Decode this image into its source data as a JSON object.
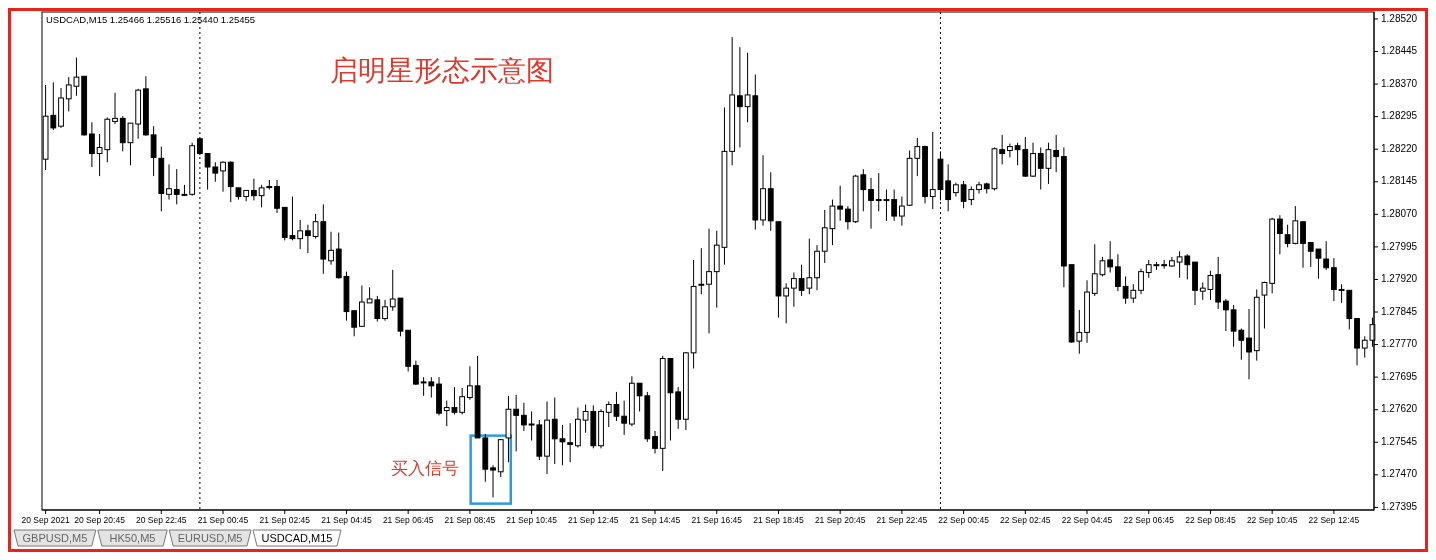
{
  "chart_data": {
    "type": "candlestick",
    "title": "启明星形态示意图",
    "annotations": [
      {
        "text": "买入信号",
        "x": "2021-09-21T09:30",
        "y": 1.27482
      },
      "USDCAD,M15  1.25466 1.25516 1.25440 1.25455",
      "GBPUSD,M5",
      "HK50,M5",
      "EURUSD,M5",
      "USDCAD,M15"
    ],
    "x": [
      "2021-09-20T19:00",
      "2021-09-20T19:15",
      "2021-09-20T19:30",
      "2021-09-20T19:45",
      "2021-09-20T20:00",
      "2021-09-20T20:15",
      "2021-09-20T20:30",
      "2021-09-20T20:45",
      "2021-09-20T21:00",
      "2021-09-20T21:15",
      "2021-09-20T21:30",
      "2021-09-20T21:45",
      "2021-09-20T22:00",
      "2021-09-20T22:15",
      "2021-09-20T22:30",
      "2021-09-20T22:45",
      "2021-09-20T23:00",
      "2021-09-20T23:15",
      "2021-09-20T23:30",
      "2021-09-20T23:45",
      "2021-09-21T00:00",
      "2021-09-21T00:15",
      "2021-09-21T00:30",
      "2021-09-21T00:45",
      "2021-09-21T01:00",
      "2021-09-21T01:15",
      "2021-09-21T01:30",
      "2021-09-21T01:45",
      "2021-09-21T02:00",
      "2021-09-21T02:15",
      "2021-09-21T02:30",
      "2021-09-21T02:45",
      "2021-09-21T03:00",
      "2021-09-21T03:15",
      "2021-09-21T03:30",
      "2021-09-21T03:45",
      "2021-09-21T04:00",
      "2021-09-21T04:15",
      "2021-09-21T04:30",
      "2021-09-21T04:45",
      "2021-09-21T05:00",
      "2021-09-21T05:15",
      "2021-09-21T05:30",
      "2021-09-21T05:45",
      "2021-09-21T06:00",
      "2021-09-21T06:15",
      "2021-09-21T06:30",
      "2021-09-21T06:45",
      "2021-09-21T07:00",
      "2021-09-21T07:15",
      "2021-09-21T07:30",
      "2021-09-21T07:45",
      "2021-09-21T08:00",
      "2021-09-21T08:15",
      "2021-09-21T08:30",
      "2021-09-21T08:45",
      "2021-09-21T09:00",
      "2021-09-21T09:15",
      "2021-09-21T09:30",
      "2021-09-21T09:45",
      "2021-09-21T10:00",
      "2021-09-21T10:15",
      "2021-09-21T10:30",
      "2021-09-21T10:45",
      "2021-09-21T11:00",
      "2021-09-21T11:15",
      "2021-09-21T11:30",
      "2021-09-21T11:45",
      "2021-09-21T12:00",
      "2021-09-21T12:15",
      "2021-09-21T12:30",
      "2021-09-21T12:45",
      "2021-09-21T13:00",
      "2021-09-21T13:15",
      "2021-09-21T13:30",
      "2021-09-21T13:45",
      "2021-09-21T14:00",
      "2021-09-21T14:15",
      "2021-09-21T14:30",
      "2021-09-21T14:45",
      "2021-09-21T15:00",
      "2021-09-21T15:15",
      "2021-09-21T15:30",
      "2021-09-21T15:45",
      "2021-09-21T16:00",
      "2021-09-21T16:15",
      "2021-09-21T16:30",
      "2021-09-21T16:45",
      "2021-09-21T17:00",
      "2021-09-21T17:15",
      "2021-09-21T17:30",
      "2021-09-21T17:45",
      "2021-09-21T18:00",
      "2021-09-21T18:15",
      "2021-09-21T18:30",
      "2021-09-21T18:45",
      "2021-09-21T19:00",
      "2021-09-21T19:15",
      "2021-09-21T19:30",
      "2021-09-21T19:45",
      "2021-09-21T20:00",
      "2021-09-21T20:15",
      "2021-09-21T20:30",
      "2021-09-21T20:45",
      "2021-09-21T21:00",
      "2021-09-21T21:15",
      "2021-09-21T21:30",
      "2021-09-21T21:45",
      "2021-09-21T22:00",
      "2021-09-21T22:15",
      "2021-09-21T22:30",
      "2021-09-21T22:45",
      "2021-09-21T23:00",
      "2021-09-21T23:15",
      "2021-09-21T23:30",
      "2021-09-21T23:45",
      "2021-09-22T00:00",
      "2021-09-22T00:15",
      "2021-09-22T00:30",
      "2021-09-22T00:45",
      "2021-09-22T01:00",
      "2021-09-22T01:15",
      "2021-09-22T01:30",
      "2021-09-22T01:45",
      "2021-09-22T02:00",
      "2021-09-22T02:15",
      "2021-09-22T02:30",
      "2021-09-22T02:45",
      "2021-09-22T03:00",
      "2021-09-22T03:15",
      "2021-09-22T03:30",
      "2021-09-22T03:45",
      "2021-09-22T04:00",
      "2021-09-22T04:15",
      "2021-09-22T04:30",
      "2021-09-22T04:45",
      "2021-09-22T05:00",
      "2021-09-22T05:15",
      "2021-09-22T05:30",
      "2021-09-22T05:45",
      "2021-09-22T06:00",
      "2021-09-22T06:15",
      "2021-09-22T06:30",
      "2021-09-22T06:45",
      "2021-09-22T07:00",
      "2021-09-22T07:15",
      "2021-09-22T07:30",
      "2021-09-22T07:45",
      "2021-09-22T08:00",
      "2021-09-22T08:15",
      "2021-09-22T08:30",
      "2021-09-22T08:45",
      "2021-09-22T09:00",
      "2021-09-22T09:15",
      "2021-09-22T09:30",
      "2021-09-22T09:45",
      "2021-09-22T10:00",
      "2021-09-22T10:15",
      "2021-09-22T10:30",
      "2021-09-22T10:45",
      "2021-09-22T11:00",
      "2021-09-22T11:15",
      "2021-09-22T11:30",
      "2021-09-22T11:45",
      "2021-09-22T12:00",
      "2021-09-22T12:15",
      "2021-09-22T12:30",
      "2021-09-22T12:45",
      "2021-09-22T13:00",
      "2021-09-22T13:15",
      "2021-09-22T13:30",
      "2021-09-22T13:45",
      "2021-09-22T14:00"
    ],
    "ohlc": [
      [
        1.28197,
        1.28368,
        1.28172,
        1.28296
      ],
      [
        1.28298,
        1.28374,
        1.28264,
        1.28269
      ],
      [
        1.28273,
        1.28361,
        1.28269,
        1.28338
      ],
      [
        1.28336,
        1.28386,
        1.28307,
        1.28368
      ],
      [
        1.28365,
        1.28431,
        1.28343,
        1.28386
      ],
      [
        1.28388,
        1.28388,
        1.28251,
        1.28253
      ],
      [
        1.28255,
        1.28282,
        1.28179,
        1.2821
      ],
      [
        1.2821,
        1.28255,
        1.28158,
        1.28224
      ],
      [
        1.28219,
        1.28293,
        1.2819,
        1.28289
      ],
      [
        1.28284,
        1.2835,
        1.28278,
        1.28291
      ],
      [
        1.28291,
        1.28296,
        1.28215,
        1.28235
      ],
      [
        1.28235,
        1.2828,
        1.28183,
        1.2828
      ],
      [
        1.28278,
        1.28359,
        1.28244,
        1.28356
      ],
      [
        1.28359,
        1.28388,
        1.28251,
        1.28253
      ],
      [
        1.28253,
        1.28273,
        1.28158,
        1.28201
      ],
      [
        1.28199,
        1.28226,
        1.28077,
        1.28118
      ],
      [
        1.28116,
        1.28185,
        1.28104,
        1.28129
      ],
      [
        1.28127,
        1.28174,
        1.28093,
        1.28116
      ],
      [
        1.28116,
        1.28138,
        1.28113,
        1.28116
      ],
      [
        1.28116,
        1.28235,
        1.28113,
        1.28228
      ],
      [
        1.28244,
        1.28244,
        1.28206,
        1.2821
      ],
      [
        1.2821,
        1.2821,
        1.28127,
        1.28179
      ],
      [
        1.28179,
        1.2819,
        1.28145,
        1.28165
      ],
      [
        1.2817,
        1.28192,
        1.28122,
        1.2819
      ],
      [
        1.2819,
        1.28192,
        1.28098,
        1.28134
      ],
      [
        1.28131,
        1.28131,
        1.28104,
        1.28111
      ],
      [
        1.28111,
        1.28125,
        1.281,
        1.28125
      ],
      [
        1.28125,
        1.28152,
        1.28102,
        1.28113
      ],
      [
        1.28113,
        1.28138,
        1.28086,
        1.28131
      ],
      [
        1.28134,
        1.28149,
        1.28127,
        1.28134
      ],
      [
        1.28134,
        1.28149,
        1.28073,
        1.28084
      ],
      [
        1.28086,
        1.28086,
        1.2801,
        1.28017
      ],
      [
        1.28021,
        1.28111,
        1.2801,
        1.28014
      ],
      [
        1.28014,
        1.28057,
        1.2799,
        1.28032
      ],
      [
        1.28032,
        1.28046,
        1.27981,
        1.28021
      ],
      [
        1.28019,
        1.28071,
        1.28014,
        1.28053
      ],
      [
        1.28053,
        1.28093,
        1.27933,
        1.27967
      ],
      [
        1.27963,
        1.2803,
        1.27954,
        1.27987
      ],
      [
        1.2799,
        1.28028,
        1.27922,
        1.27924
      ],
      [
        1.27927,
        1.27938,
        1.27825,
        1.27846
      ],
      [
        1.27848,
        1.27848,
        1.27789,
        1.2781
      ],
      [
        1.27812,
        1.27906,
        1.27812,
        1.27868
      ],
      [
        1.27866,
        1.27902,
        1.27866,
        1.27875
      ],
      [
        1.27873,
        1.27882,
        1.27823,
        1.2783
      ],
      [
        1.2783,
        1.27873,
        1.27825,
        1.27857
      ],
      [
        1.27857,
        1.27942,
        1.27848,
        1.27875
      ],
      [
        1.27877,
        1.27877,
        1.27789,
        1.27801
      ],
      [
        1.27803,
        1.27803,
        1.27708,
        1.2772
      ],
      [
        1.27722,
        1.27733,
        1.27677,
        1.27679
      ],
      [
        1.27684,
        1.27695,
        1.27652,
        1.27684
      ],
      [
        1.27684,
        1.27695,
        1.27648,
        1.27675
      ],
      [
        1.27679,
        1.27695,
        1.27607,
        1.27612
      ],
      [
        1.27618,
        1.27641,
        1.27582,
        1.27625
      ],
      [
        1.27625,
        1.27672,
        1.27609,
        1.27614
      ],
      [
        1.27614,
        1.2767,
        1.27609,
        1.2765
      ],
      [
        1.27648,
        1.2772,
        1.27643,
        1.27675
      ],
      [
        1.27675,
        1.27744,
        1.27555,
        1.27555
      ],
      [
        1.27555,
        1.27564,
        1.27454,
        1.27483
      ],
      [
        1.27486,
        1.27492,
        1.27418,
        1.27481
      ],
      [
        1.27477,
        1.27551,
        1.27465,
        1.27551
      ],
      [
        1.27555,
        1.27652,
        1.27499,
        1.27621
      ],
      [
        1.27621,
        1.27654,
        1.27524,
        1.27607
      ],
      [
        1.27607,
        1.27636,
        1.27571,
        1.27585
      ],
      [
        1.27587,
        1.27616,
        1.27549,
        1.27587
      ],
      [
        1.27585,
        1.27596,
        1.27504,
        1.27513
      ],
      [
        1.27513,
        1.27639,
        1.27472,
        1.27596
      ],
      [
        1.27598,
        1.27648,
        1.27495,
        1.27553
      ],
      [
        1.27553,
        1.27585,
        1.27492,
        1.27546
      ],
      [
        1.27544,
        1.27589,
        1.27499,
        1.2754
      ],
      [
        1.27537,
        1.27625,
        1.27533,
        1.27598
      ],
      [
        1.27596,
        1.27632,
        1.27567,
        1.27616
      ],
      [
        1.27616,
        1.2763,
        1.27531,
        1.27537
      ],
      [
        1.27537,
        1.27621,
        1.27531,
        1.27616
      ],
      [
        1.27614,
        1.27639,
        1.2758,
        1.27632
      ],
      [
        1.27632,
        1.27661,
        1.27594,
        1.27605
      ],
      [
        1.27605,
        1.27641,
        1.27562,
        1.27589
      ],
      [
        1.27587,
        1.27697,
        1.27582,
        1.27681
      ],
      [
        1.27681,
        1.27681,
        1.27616,
        1.27652
      ],
      [
        1.27652,
        1.27661,
        1.27546,
        1.27553
      ],
      [
        1.27558,
        1.27571,
        1.27519,
        1.27531
      ],
      [
        1.27531,
        1.27744,
        1.27479,
        1.27738
      ],
      [
        1.27738,
        1.27738,
        1.27549,
        1.27659
      ],
      [
        1.27661,
        1.27672,
        1.27576,
        1.27598
      ],
      [
        1.27598,
        1.27753,
        1.27573,
        1.27751
      ],
      [
        1.27751,
        1.27965,
        1.27715,
        1.27904
      ],
      [
        1.27909,
        1.27992,
        1.27886,
        1.27909
      ],
      [
        1.27909,
        1.28037,
        1.27796,
        1.27938
      ],
      [
        1.27938,
        1.28032,
        1.27855,
        1.27999
      ],
      [
        1.27994,
        1.28316,
        1.27954,
        1.28215
      ],
      [
        1.28215,
        1.28478,
        1.28183,
        1.28345
      ],
      [
        1.28343,
        1.28455,
        1.28224,
        1.28318
      ],
      [
        1.28318,
        1.28442,
        1.28282,
        1.28345
      ],
      [
        1.28343,
        1.28392,
        1.28035,
        1.28057
      ],
      [
        1.28057,
        1.28206,
        1.28044,
        1.28129
      ],
      [
        1.28129,
        1.28167,
        1.28032,
        1.28055
      ],
      [
        1.28053,
        1.28053,
        1.27832,
        1.27882
      ],
      [
        1.27882,
        1.27911,
        1.27819,
        1.279
      ],
      [
        1.279,
        1.27936,
        1.27857,
        1.27922
      ],
      [
        1.27922,
        1.27954,
        1.27882,
        1.27895
      ],
      [
        1.279,
        1.28014,
        1.27886,
        1.27924
      ],
      [
        1.27924,
        1.27999,
        1.27895,
        1.27985
      ],
      [
        1.27985,
        1.2808,
        1.27958,
        1.28039
      ],
      [
        1.28037,
        1.28104,
        1.27999,
        1.28089
      ],
      [
        1.28089,
        1.28136,
        1.28055,
        1.28082
      ],
      [
        1.28082,
        1.28089,
        1.28035,
        1.28053
      ],
      [
        1.28053,
        1.28161,
        1.2805,
        1.28158
      ],
      [
        1.28161,
        1.28174,
        1.28077,
        1.28127
      ],
      [
        1.28127,
        1.28154,
        1.28037,
        1.28102
      ],
      [
        1.28104,
        1.28165,
        1.28077,
        1.28104
      ],
      [
        1.28104,
        1.28127,
        1.28055,
        1.28104
      ],
      [
        1.28104,
        1.28127,
        1.28055,
        1.28066
      ],
      [
        1.28066,
        1.28111,
        1.28044,
        1.28089
      ],
      [
        1.28091,
        1.28217,
        1.28089,
        1.28199
      ],
      [
        1.28199,
        1.28246,
        1.28158,
        1.28226
      ],
      [
        1.28226,
        1.28228,
        1.28095,
        1.28111
      ],
      [
        1.28111,
        1.2826,
        1.28082,
        1.28127
      ],
      [
        1.28197,
        1.28215,
        1.28102,
        1.28127
      ],
      [
        1.28147,
        1.28185,
        1.28077,
        1.28104
      ],
      [
        1.2812,
        1.28143,
        1.28111,
        1.28138
      ],
      [
        1.28138,
        1.28147,
        1.28084,
        1.281
      ],
      [
        1.28104,
        1.28134,
        1.28091,
        1.28127
      ],
      [
        1.28127,
        1.28145,
        1.28118,
        1.28138
      ],
      [
        1.2814,
        1.28143,
        1.28118,
        1.28129
      ],
      [
        1.28129,
        1.28224,
        1.28125,
        1.28221
      ],
      [
        1.28219,
        1.28253,
        1.28185,
        1.2821
      ],
      [
        1.28217,
        1.28233,
        1.28201,
        1.28226
      ],
      [
        1.28228,
        1.28235,
        1.28183,
        1.28219
      ],
      [
        1.28219,
        1.28248,
        1.28156,
        1.28158
      ],
      [
        1.28158,
        1.28235,
        1.28156,
        1.2821
      ],
      [
        1.2821,
        1.28224,
        1.28127,
        1.28176
      ],
      [
        1.28176,
        1.28235,
        1.2814,
        1.28219
      ],
      [
        1.28217,
        1.28253,
        1.28167,
        1.28203
      ],
      [
        1.28203,
        1.28224,
        1.27902,
        1.27951
      ],
      [
        1.27954,
        1.27954,
        1.27774,
        1.27776
      ],
      [
        1.27778,
        1.2785,
        1.27749,
        1.27798
      ],
      [
        1.27798,
        1.27918,
        1.27774,
        1.27891
      ],
      [
        1.27888,
        1.28001,
        1.27882,
        1.27933
      ],
      [
        1.27931,
        1.27972,
        1.27927,
        1.27963
      ],
      [
        1.27965,
        1.28008,
        1.27936,
        1.27949
      ],
      [
        1.27949,
        1.27978,
        1.27893,
        1.27904
      ],
      [
        1.27904,
        1.27927,
        1.27864,
        1.27877
      ],
      [
        1.27877,
        1.27909,
        1.27866,
        1.27895
      ],
      [
        1.27895,
        1.27945,
        1.27886,
        1.27938
      ],
      [
        1.27936,
        1.27965,
        1.27924,
        1.27954
      ],
      [
        1.27954,
        1.2796,
        1.27942,
        1.27954
      ],
      [
        1.27954,
        1.27965,
        1.27945,
        1.27954
      ],
      [
        1.27951,
        1.27972,
        1.27949,
        1.27963
      ],
      [
        1.2796,
        1.27985,
        1.27924,
        1.27972
      ],
      [
        1.27974,
        1.27978,
        1.2792,
        1.27954
      ],
      [
        1.2796,
        1.2796,
        1.27861,
        1.27895
      ],
      [
        1.27893,
        1.27913,
        1.27873,
        1.279
      ],
      [
        1.27897,
        1.2794,
        1.27873,
        1.27929
      ],
      [
        1.27931,
        1.27972,
        1.27852,
        1.27868
      ],
      [
        1.2787,
        1.27875,
        1.27801,
        1.2785
      ],
      [
        1.2785,
        1.27861,
        1.27765,
        1.27801
      ],
      [
        1.27803,
        1.27807,
        1.27735,
        1.2778
      ],
      [
        1.27785,
        1.27852,
        1.2769,
        1.27753
      ],
      [
        1.27756,
        1.27897,
        1.27733,
        1.27879
      ],
      [
        1.27884,
        1.27915,
        1.27807,
        1.27913
      ],
      [
        1.27911,
        1.28062,
        1.27888,
        1.28059
      ],
      [
        1.28059,
        1.28068,
        1.27978,
        1.28026
      ],
      [
        1.28023,
        1.28046,
        1.27994,
        1.28003
      ],
      [
        1.28003,
        1.28089,
        1.28001,
        1.28055
      ],
      [
        1.28053,
        1.28053,
        1.27947,
        1.28003
      ],
      [
        1.28005,
        1.28005,
        1.27949,
        1.27985
      ],
      [
        1.2799,
        1.2799,
        1.27922,
        1.27969
      ],
      [
        1.27967,
        1.28008,
        1.27942,
        1.27947
      ],
      [
        1.27947,
        1.27969,
        1.2787,
        1.27897
      ],
      [
        1.27897,
        1.27909,
        1.27866,
        1.27897
      ],
      [
        1.27895,
        1.27895,
        1.27805,
        1.2783
      ],
      [
        1.2783,
        1.2783,
        1.27722,
        1.27762
      ],
      [
        1.27762,
        1.27789,
        1.2774,
        1.2778
      ],
      [
        1.2778,
        1.27832,
        1.27765,
        1.27816
      ]
    ],
    "xlim": [
      "2021-09-20T18:53",
      "2021-09-22T14:03"
    ],
    "xticks": [
      {
        "value": "2021-09-20T19:00",
        "label": "20 Sep 2021"
      },
      {
        "value": "2021-09-20T20:45",
        "label": "20 Sep 20:45"
      },
      {
        "value": "2021-09-20T22:45",
        "label": "20 Sep 22:45"
      },
      {
        "value": "2021-09-21T00:45",
        "label": "21 Sep 00:45"
      },
      {
        "value": "2021-09-21T02:45",
        "label": "21 Sep 02:45"
      },
      {
        "value": "2021-09-21T04:45",
        "label": "21 Sep 04:45"
      },
      {
        "value": "2021-09-21T06:45",
        "label": "21 Sep 06:45"
      },
      {
        "value": "2021-09-21T08:45",
        "label": "21 Sep 08:45"
      },
      {
        "value": "2021-09-21T10:45",
        "label": "21 Sep 10:45"
      },
      {
        "value": "2021-09-21T12:45",
        "label": "21 Sep 12:45"
      },
      {
        "value": "2021-09-21T14:45",
        "label": "21 Sep 14:45"
      },
      {
        "value": "2021-09-21T16:45",
        "label": "21 Sep 16:45"
      },
      {
        "value": "2021-09-21T18:45",
        "label": "21 Sep 18:45"
      },
      {
        "value": "2021-09-21T20:45",
        "label": "21 Sep 20:45"
      },
      {
        "value": "2021-09-21T22:45",
        "label": "21 Sep 22:45"
      },
      {
        "value": "2021-09-22T00:45",
        "label": "22 Sep 00:45"
      },
      {
        "value": "2021-09-22T02:45",
        "label": "22 Sep 02:45"
      },
      {
        "value": "2021-09-22T04:45",
        "label": "22 Sep 04:45"
      },
      {
        "value": "2021-09-22T06:45",
        "label": "22 Sep 06:45"
      },
      {
        "value": "2021-09-22T08:45",
        "label": "22 Sep 08:45"
      },
      {
        "value": "2021-09-22T10:45",
        "label": "22 Sep 10:45"
      },
      {
        "value": "2021-09-22T12:45",
        "label": "22 Sep 12:45"
      }
    ],
    "ylim": [
      1.27389,
      1.28536
    ],
    "yticks": [
      {
        "value": 1.2852,
        "label": "1.28520"
      },
      {
        "value": 1.28445,
        "label": "1.28445"
      },
      {
        "value": 1.2837,
        "label": "1.28370"
      },
      {
        "value": 1.28295,
        "label": "1.28295"
      },
      {
        "value": 1.2822,
        "label": "1.28220"
      },
      {
        "value": 1.28145,
        "label": "1.28145"
      },
      {
        "value": 1.2807,
        "label": "1.28070"
      },
      {
        "value": 1.27995,
        "label": "1.27995"
      },
      {
        "value": 1.2792,
        "label": "1.27920"
      },
      {
        "value": 1.27845,
        "label": "1.27845"
      },
      {
        "value": 1.2777,
        "label": "1.27770"
      },
      {
        "value": 1.27695,
        "label": "1.27695"
      },
      {
        "value": 1.2762,
        "label": "1.27620"
      },
      {
        "value": 1.27545,
        "label": "1.27545"
      },
      {
        "value": 1.2747,
        "label": "1.27470"
      },
      {
        "value": 1.27395,
        "label": "1.27395"
      }
    ],
    "ref_lines": [
      {
        "axis": "x",
        "value": "2021-09-21T00:00",
        "line_style": "dotted"
      },
      {
        "axis": "x",
        "value": "2021-09-22T00:00",
        "line_style": "dotted"
      }
    ]
  }
}
